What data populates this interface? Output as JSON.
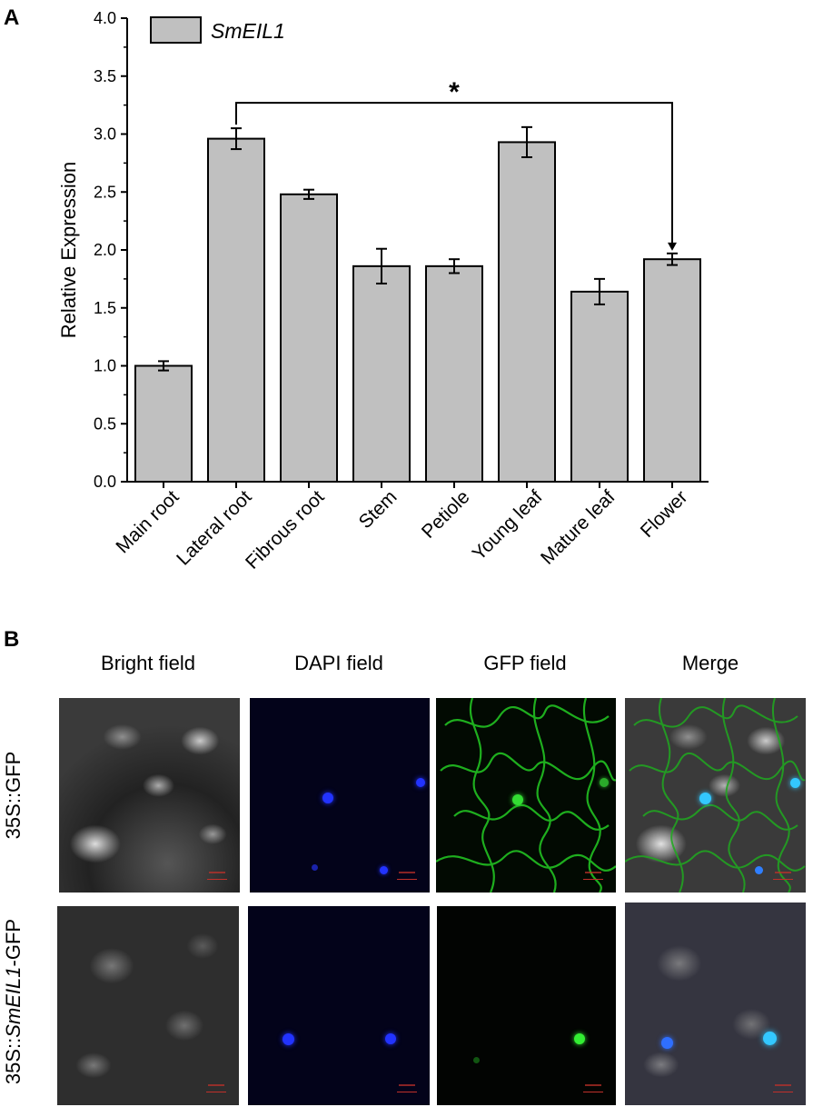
{
  "panels": {
    "a_label": "A",
    "b_label": "B"
  },
  "chart_data": {
    "type": "bar",
    "legend": {
      "label": "SmEIL1",
      "placement": "top-left"
    },
    "ylabel": "Relative Expression",
    "xlabel": "",
    "ylim": [
      0,
      4.0
    ],
    "yticks": [
      "0.0",
      "0.5",
      "1.0",
      "1.5",
      "2.0",
      "2.5",
      "3.0",
      "3.5",
      "4.0"
    ],
    "categories": [
      "Main root",
      "Lateral root",
      "Fibrous root",
      "Stem",
      "Petiole",
      "Young leaf",
      "Mature leaf",
      "Flower"
    ],
    "values": [
      1.0,
      2.96,
      2.48,
      1.86,
      1.86,
      2.93,
      1.64,
      1.92
    ],
    "errors": [
      0.04,
      0.09,
      0.04,
      0.15,
      0.06,
      0.13,
      0.11,
      0.05
    ],
    "bar_color": "#c0c0c0",
    "significance": {
      "from": "Lateral root",
      "to": "Flower",
      "y": 3.27,
      "label": "*"
    }
  },
  "micrographs": {
    "columns": [
      "Bright field",
      "DAPI field",
      "GFP field",
      "Merge"
    ],
    "rows": [
      {
        "prefix": "35S::",
        "italic": "",
        "suffix": "GFP"
      },
      {
        "prefix": "35S::",
        "italic": "SmEIL1",
        "suffix": "-GFP"
      }
    ]
  },
  "colors": {
    "dapi": "#2233ff",
    "gfp": "#22dd22",
    "merge_nucleus": "#33c8ff",
    "scale_bar": "#c0302a"
  }
}
